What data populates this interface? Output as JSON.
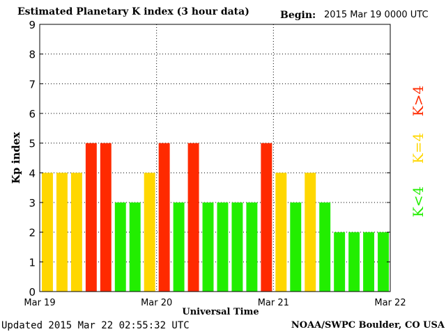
{
  "header": {
    "title": "Estimated Planetary K index (3 hour data)",
    "begin_label": "Begin:",
    "begin_value": "2015 Mar 19 0000 UTC"
  },
  "footer": {
    "updated": "Updated 2015 Mar 22 02:55:32 UTC",
    "credit": "NOAA/SWPC Boulder, CO USA"
  },
  "legend": [
    {
      "label": "K>4",
      "color": "#ff2a00"
    },
    {
      "label": "K=4",
      "color": "#ffd700"
    },
    {
      "label": "K<4",
      "color": "#22ee00"
    }
  ],
  "chart_data": {
    "type": "bar",
    "title": "Estimated Planetary K index (3 hour data)",
    "xlabel": "Universal Time",
    "ylabel": "Kp index",
    "ylim": [
      0,
      9
    ],
    "yticks": [
      0,
      1,
      2,
      3,
      4,
      5,
      6,
      7,
      8,
      9
    ],
    "xticks": [
      "Mar 19",
      "Mar 20",
      "Mar 21",
      "Mar 22"
    ],
    "interval_hours": 3,
    "values": [
      4,
      4,
      4,
      5,
      5,
      3,
      3,
      4,
      5,
      3,
      5,
      3,
      3,
      3,
      3,
      5,
      4,
      3,
      4,
      3,
      2,
      2,
      2,
      2
    ],
    "colors": {
      "gt4": "#ff2a00",
      "eq4": "#ffd700",
      "lt4": "#22ee00"
    },
    "grid": true
  }
}
